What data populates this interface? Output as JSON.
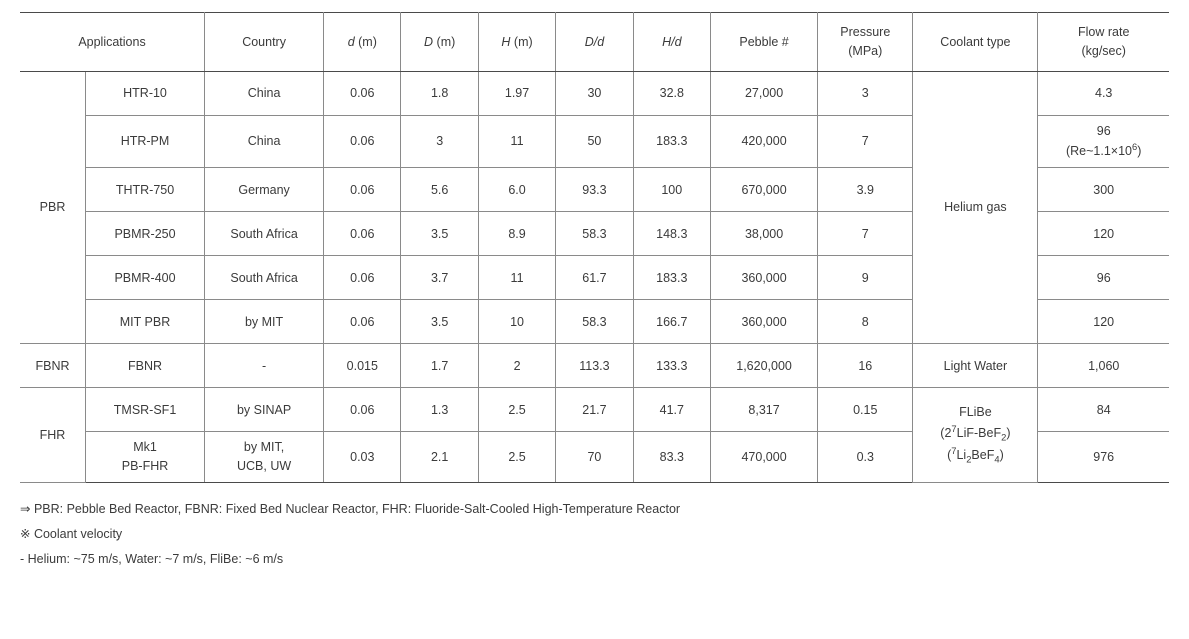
{
  "headers": {
    "applications": "Applications",
    "country": "Country",
    "d_small": "d",
    "d_big": "D",
    "h_big": "H",
    "d_over_d": "D/d",
    "h_over_d": "H/d",
    "pebble": "Pebble #",
    "pressure_l1": "Pressure",
    "pressure_l2": "(MPa)",
    "coolant": "Coolant type",
    "flow_l1": "Flow rate",
    "flow_l2": "(kg/sec)",
    "unit_m": " (m)"
  },
  "groups": {
    "pbr": "PBR",
    "fbnr": "FBNR",
    "fhr": "FHR"
  },
  "coolants": {
    "helium": "Helium gas",
    "light_water": "Light Water",
    "flibe_l1": "FLiBe",
    "flibe_l2a": "(2",
    "flibe_l2b": "LiF-BeF",
    "flibe_l2c": ")",
    "flibe_l3a": "(",
    "flibe_l3b": "Li",
    "flibe_l3c": "BeF",
    "flibe_l3d": ")",
    "sup7": "7",
    "sub2": "2",
    "sub4": "4"
  },
  "rows": {
    "r0": {
      "name": "HTR-10",
      "country": "China",
      "d": "0.06",
      "D": "1.8",
      "H": "1.97",
      "Dd": "30",
      "Hd": "32.8",
      "peb": "27,000",
      "p": "3",
      "flow": "4.3"
    },
    "r1": {
      "name": "HTR-PM",
      "country": "China",
      "d": "0.06",
      "D": "3",
      "H": "11",
      "Dd": "50",
      "Hd": "183.3",
      "peb": "420,000",
      "p": "7",
      "flow_l1": "96",
      "flow_l2a": "(Re~1.1×10",
      "flow_sup": "6",
      "flow_l2b": ")"
    },
    "r2": {
      "name": "THTR-750",
      "country": "Germany",
      "d": "0.06",
      "D": "5.6",
      "H": "6.0",
      "Dd": "93.3",
      "Hd": "100",
      "peb": "670,000",
      "p": "3.9",
      "flow": "300"
    },
    "r3": {
      "name": "PBMR-250",
      "country": "South Africa",
      "d": "0.06",
      "D": "3.5",
      "H": "8.9",
      "Dd": "58.3",
      "Hd": "148.3",
      "peb": "38,000",
      "p": "7",
      "flow": "120"
    },
    "r4": {
      "name": "PBMR-400",
      "country": "South Africa",
      "d": "0.06",
      "D": "3.7",
      "H": "11",
      "Dd": "61.7",
      "Hd": "183.3",
      "peb": "360,000",
      "p": "9",
      "flow": "96"
    },
    "r5": {
      "name": "MIT PBR",
      "country": "by MIT",
      "d": "0.06",
      "D": "3.5",
      "H": "10",
      "Dd": "58.3",
      "Hd": "166.7",
      "peb": "360,000",
      "p": "8",
      "flow": "120"
    },
    "r6": {
      "name": "FBNR",
      "country": "-",
      "d": "0.015",
      "D": "1.7",
      "H": "2",
      "Dd": "113.3",
      "Hd": "133.3",
      "peb": "1,620,000",
      "p": "16",
      "flow": "1,060"
    },
    "r7": {
      "name": "TMSR-SF1",
      "country": "by SINAP",
      "d": "0.06",
      "D": "1.3",
      "H": "2.5",
      "Dd": "21.7",
      "Hd": "41.7",
      "peb": "8,317",
      "p": "0.15",
      "flow": "84"
    },
    "r8": {
      "name_l1": "Mk1",
      "name_l2": "PB-FHR",
      "country_l1": "by MIT,",
      "country_l2": "UCB, UW",
      "d": "0.03",
      "D": "2.1",
      "H": "2.5",
      "Dd": "70",
      "Hd": "83.3",
      "peb": "470,000",
      "p": "0.3",
      "flow": "976"
    }
  },
  "notes": {
    "n1": "⇒ PBR: Pebble Bed Reactor, FBNR: Fixed Bed Nuclear Reactor, FHR: Fluoride-Salt-Cooled High-Temperature Reactor",
    "n2": "※ Coolant velocity",
    "n3": "- Helium: ~75 m/s, Water: ~7 m/s, FliBe: ~6 m/s"
  }
}
